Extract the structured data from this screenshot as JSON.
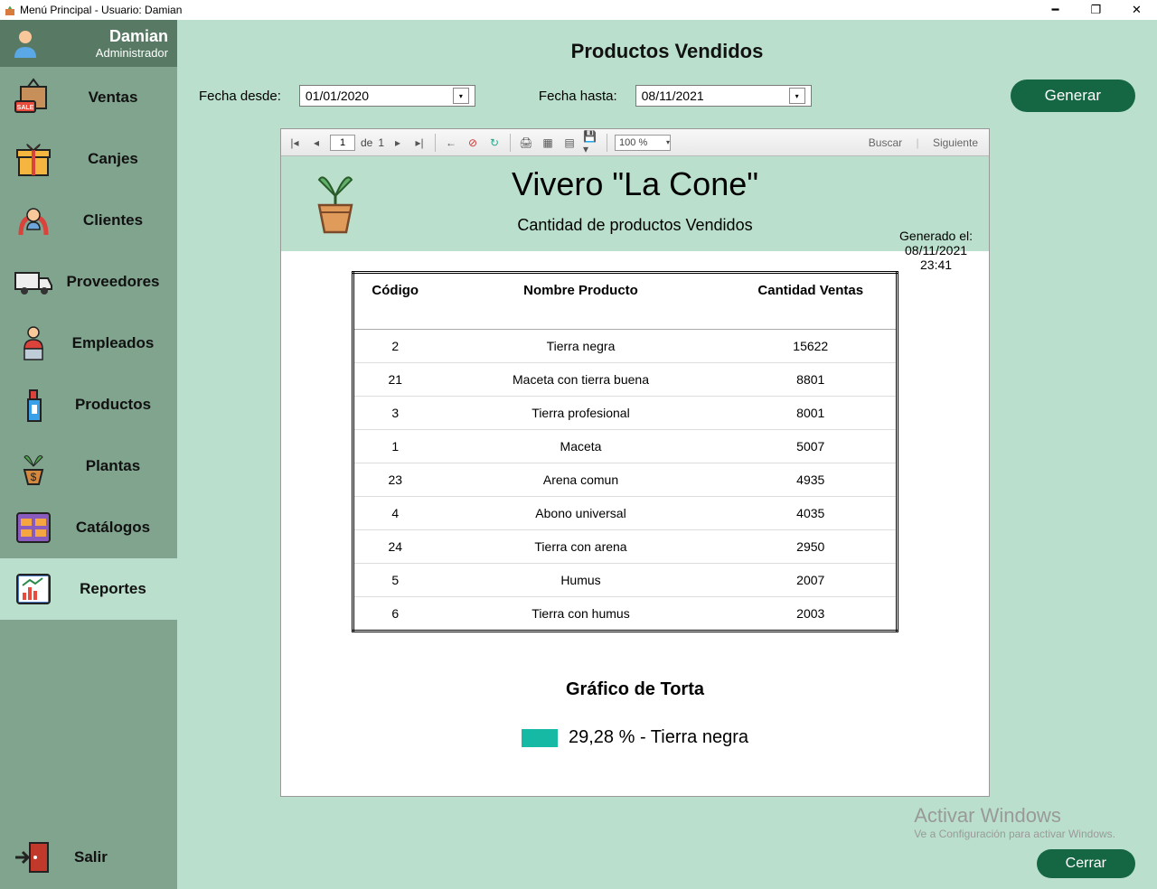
{
  "window": {
    "title": "Menú Principal - Usuario: Damian"
  },
  "user": {
    "name": "Damian",
    "role": "Administrador"
  },
  "nav": {
    "items": [
      {
        "label": "Ventas",
        "key": "ventas"
      },
      {
        "label": "Canjes",
        "key": "canjes"
      },
      {
        "label": "Clientes",
        "key": "clientes"
      },
      {
        "label": "Proveedores",
        "key": "proveedores"
      },
      {
        "label": "Empleados",
        "key": "empleados"
      },
      {
        "label": "Productos",
        "key": "productos"
      },
      {
        "label": "Plantas",
        "key": "plantas"
      },
      {
        "label": "Catálogos",
        "key": "catalogos"
      },
      {
        "label": "Reportes",
        "key": "reportes"
      }
    ],
    "active_index": 8,
    "exit_label": "Salir"
  },
  "page": {
    "title": "Productos Vendidos",
    "from_label": "Fecha desde:",
    "to_label": "Fecha hasta:",
    "from_value": "01/01/2020",
    "to_value": "08/11/2021",
    "generate_btn": "Generar",
    "close_btn": "Cerrar"
  },
  "viewer_toolbar": {
    "page_current": "1",
    "of_label": "de",
    "page_total": "1",
    "zoom": "100 %",
    "search_label": "Buscar",
    "next_label": "Siguiente"
  },
  "report": {
    "title": "Vivero \"La Cone\"",
    "subtitle": "Cantidad de productos Vendidos",
    "generated_label": "Generado el:",
    "generated_date": "08/11/2021",
    "generated_time": "23:41",
    "columns": [
      "Código",
      "Nombre Producto",
      "Cantidad Ventas"
    ],
    "rows": [
      [
        "2",
        "Tierra negra",
        "15622"
      ],
      [
        "21",
        "Maceta con tierra buena",
        "8801"
      ],
      [
        "3",
        "Tierra profesional",
        "8001"
      ],
      [
        "1",
        "Maceta",
        "5007"
      ],
      [
        "23",
        "Arena comun",
        "4935"
      ],
      [
        "4",
        "Abono universal",
        "4035"
      ],
      [
        "24",
        "Tierra con arena",
        "2950"
      ],
      [
        "5",
        "Humus",
        "2007"
      ],
      [
        "6",
        "Tierra con humus",
        "2003"
      ]
    ],
    "chart": {
      "title": "Gráfico de Torta",
      "type": "pie",
      "visible_slice": {
        "label": "29,28 % - Tierra negra",
        "color": "#15b9a4"
      }
    },
    "colors": {
      "header_bg": "#bae0cd",
      "accent": "#156744"
    }
  },
  "watermark": {
    "line1": "Activar Windows",
    "line2": "Ve a Configuración para activar Windows."
  }
}
